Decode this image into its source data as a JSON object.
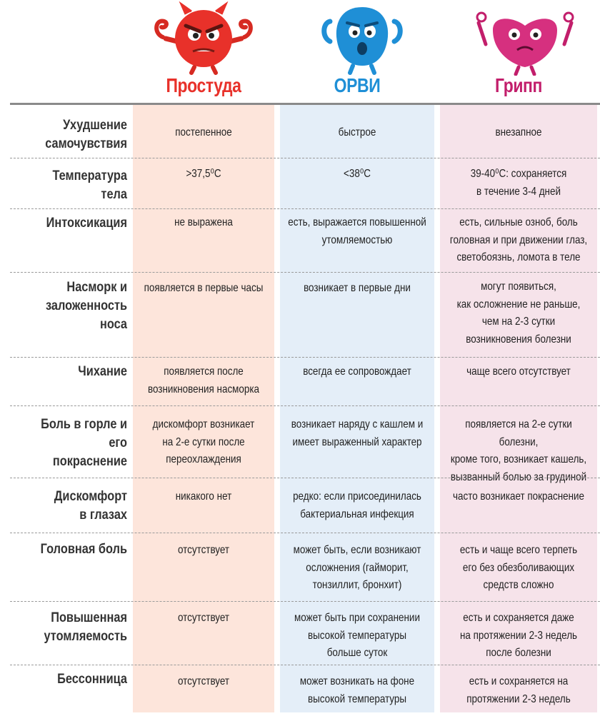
{
  "columns": [
    {
      "title": "Простуда",
      "color": "#e8312a",
      "mascot": "angry-red-monster-icon"
    },
    {
      "title": "ОРВИ",
      "color": "#1f8fd6",
      "mascot": "blue-monster-icon"
    },
    {
      "title": "Грипп",
      "color": "#c21e6b",
      "mascot": "pink-monster-icon"
    }
  ],
  "rows": [
    {
      "label": "Ухудшение\nсамочувствия",
      "cold": "постепенное",
      "arvi": "быстрое",
      "flu": "внезапное"
    },
    {
      "label": "Температура\nтела",
      "cold": ">37,5⁰С",
      "arvi": "<38⁰С",
      "flu": "39-40⁰С: сохраняется\nв течение 3-4 дней"
    },
    {
      "label": "Интоксикация",
      "cold": "не выражена",
      "arvi": "есть, выражается повышенной\nутомляемостью",
      "flu": "есть, сильные озноб, боль\nголовная и при движении глаз,\nсветобоязнь, ломота в теле"
    },
    {
      "label": "Насморк и\nзаложенность носа",
      "cold": "появляется в первые часы",
      "arvi": "возникает в первые дни",
      "flu": "могут появиться,\nкак осложнение не раньше,\nчем на 2-3 сутки\nвозникновения болезни"
    },
    {
      "label": "Чихание",
      "cold": "появляется после\nвозникновения насморка",
      "arvi": "всегда ее сопровождает",
      "flu": "чаще всего отсутствует"
    },
    {
      "label": "Боль в горле и его\nпокраснение",
      "cold": "дискомфорт возникает\nна 2-е сутки после\nпереохлаждения",
      "arvi": "возникает наряду с кашлем и\nимеет выраженный характер",
      "flu": "появляется на 2-е сутки болезни,\nкроме того, возникает кашель,\nвызванный болью за грудиной"
    },
    {
      "label": "Дискомфорт\nв глазах",
      "cold": "никакого нет",
      "arvi": "редко: если присоединилась\nбактериальная инфекция",
      "flu": "часто возникает покраснение"
    },
    {
      "label": "Головная боль",
      "cold": "отсутствует",
      "arvi": "может быть, если возникают\nосложнения (гайморит,\nтонзиллит, бронхит)",
      "flu": "есть и чаще всего терпеть\nего без обезболивающих\nсредств сложно"
    },
    {
      "label": "Повышенная\nутомляемость",
      "cold": "отсутствует",
      "arvi": "может быть при сохранении\nвысокой температуры\nбольше суток",
      "flu": "есть и сохраняется даже\nна протяжении 2-3 недель\nпосле болезни"
    },
    {
      "label": "Бессонница",
      "cold": "отсутствует",
      "arvi": "может возникать на фоне\nвысокой температуры",
      "flu": "есть и сохраняется на\nпротяжении 2-3 недель"
    }
  ]
}
